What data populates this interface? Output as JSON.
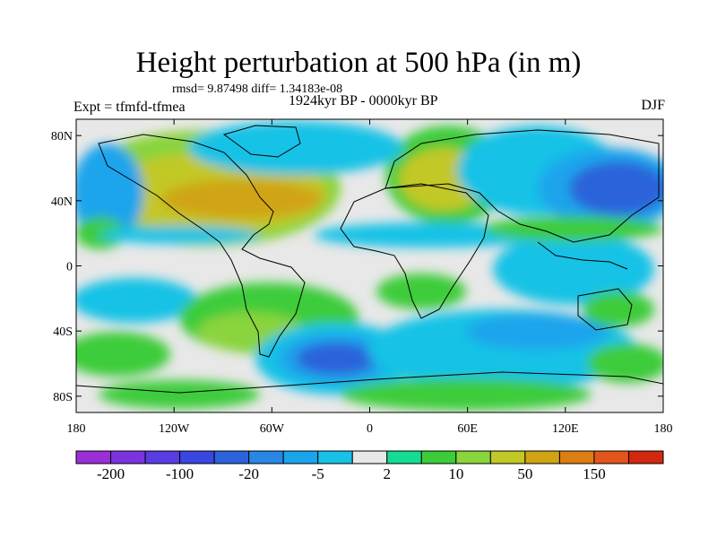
{
  "title": "Height perturbation at 500 hPa (in m)",
  "stats": "rmsd= 9.87498 diff= 1.34183e-08",
  "experiment": "Expt = tfmfd-tfmea",
  "period": "1924kyr BP - 0000kyr BP",
  "season": "DJF",
  "lat_labels": [
    "80N",
    "40N",
    "0",
    "40S",
    "80S"
  ],
  "lat_values": [
    80,
    40,
    0,
    -40,
    -80
  ],
  "lon_labels": [
    "180",
    "120W",
    "60W",
    "0",
    "60E",
    "120E",
    "180"
  ],
  "lon_values": [
    -180,
    -120,
    -60,
    0,
    60,
    120,
    180
  ],
  "colorbar": {
    "colors": [
      "#9b2fd6",
      "#7b33e0",
      "#5a3ce3",
      "#3a46e0",
      "#2a63da",
      "#2a86e3",
      "#1aa4ec",
      "#18c2e6",
      "#e8e8e8",
      "#14dd93",
      "#3ccc3a",
      "#8ad43c",
      "#c2c826",
      "#d0a414",
      "#dc7e12",
      "#e2561c",
      "#d22810"
    ],
    "labels": [
      "-200",
      "-100",
      "-20",
      "-5",
      "2",
      "10",
      "50",
      "150"
    ]
  }
}
